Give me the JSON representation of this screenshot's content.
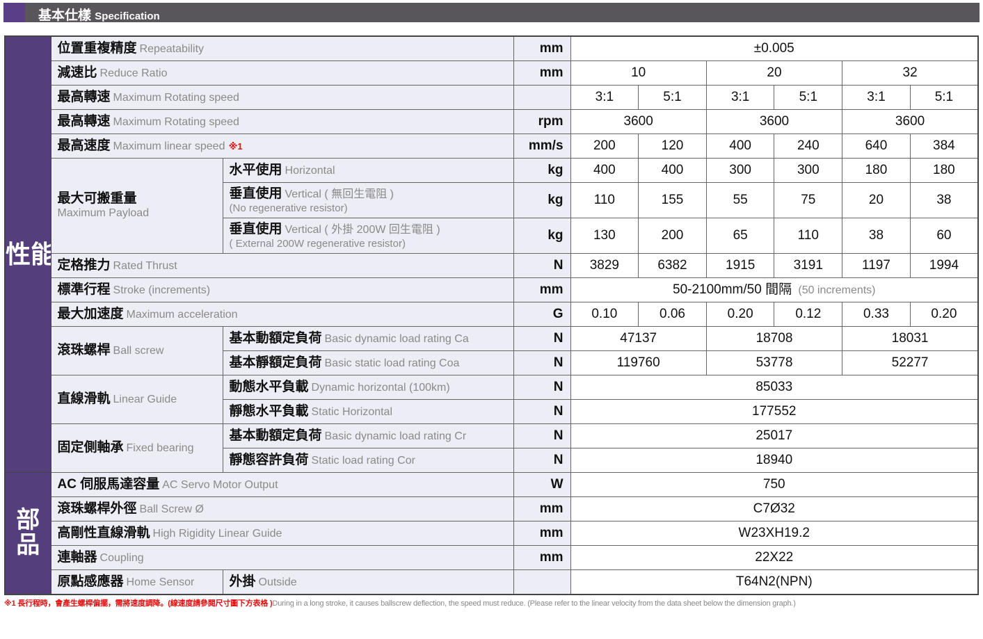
{
  "header": {
    "title_zh": "基本仕樣",
    "title_en": "Specification"
  },
  "side": {
    "performance": "性能",
    "parts": "部品"
  },
  "rows": {
    "repeat": {
      "zh": "位置重複精度",
      "en": "Repeatability",
      "unit": "mm",
      "v": "±0.005"
    },
    "ratio": {
      "zh": "減速比",
      "en": "Reduce Ratio",
      "unit": "mm",
      "v": [
        "10",
        "20",
        "32"
      ]
    },
    "rot1": {
      "zh": "最高轉速",
      "en": "Maximum Rotating speed",
      "v": [
        "3:1",
        "5:1",
        "3:1",
        "5:1",
        "3:1",
        "5:1"
      ]
    },
    "rot2": {
      "zh": "最高轉速",
      "en": "Maximum Rotating speed",
      "unit": "rpm",
      "v": [
        "3600",
        "3600",
        "3600"
      ]
    },
    "lin": {
      "zh": "最高速度",
      "en": "Maximum linear speed",
      "mark": "※1",
      "unit": "mm/s",
      "v": [
        "200",
        "120",
        "400",
        "240",
        "640",
        "384"
      ]
    },
    "payload": {
      "zh": "最大可搬重量",
      "en": "Maximum Payload",
      "h": {
        "zh": "水平使用",
        "en": "Horizontal",
        "unit": "kg",
        "v": [
          "400",
          "400",
          "300",
          "300",
          "180",
          "180"
        ]
      },
      "vn": {
        "zh": "垂直使用",
        "en": "Vertical ( 無回生電阻 )",
        "sub": "(No regenerative resistor)",
        "unit": "kg",
        "v": [
          "110",
          "155",
          "55",
          "75",
          "20",
          "38"
        ]
      },
      "ve": {
        "zh": "垂直使用",
        "en": "Vertical ( 外掛 200W 回生電阻 )",
        "sub": "( External 200W regenerative resistor)",
        "unit": "kg",
        "v": [
          "130",
          "200",
          "65",
          "110",
          "38",
          "60"
        ]
      }
    },
    "thrust": {
      "zh": "定格推力",
      "en": "Rated Thrust",
      "unit": "N",
      "v": [
        "3829",
        "6382",
        "1915",
        "3191",
        "1197",
        "1994"
      ]
    },
    "stroke": {
      "zh": "標準行程",
      "en": "Stroke (increments)",
      "unit": "mm",
      "v": "50-2100mm/50 間隔",
      "v2": "(50 increments)"
    },
    "accel": {
      "zh": "最大加速度",
      "en": "Maximum acceleration",
      "unit": "G",
      "v": [
        "0.10",
        "0.06",
        "0.20",
        "0.12",
        "0.33",
        "0.20"
      ]
    },
    "ballscrew": {
      "zh": "滾珠螺桿",
      "en": "Ball screw",
      "ca": {
        "zh": "基本動額定負荷",
        "en": "Basic dynamic load rating Ca",
        "unit": "N",
        "v": [
          "47137",
          "18708",
          "18031"
        ]
      },
      "coa": {
        "zh": "基本靜額定負荷",
        "en": "Basic static load rating Coa",
        "unit": "N",
        "v": [
          "119760",
          "53778",
          "52277"
        ]
      }
    },
    "guide": {
      "zh": "直線滑軌",
      "en": "Linear Guide",
      "dyn": {
        "zh": "動態水平負載",
        "en": "Dynamic horizontal (100km)",
        "unit": "N",
        "v": "85033"
      },
      "st": {
        "zh": "靜態水平負載",
        "en": "Static Horizontal",
        "unit": "N",
        "v": "177552"
      }
    },
    "bearing": {
      "zh": "固定側軸承",
      "en": "Fixed bearing",
      "cr": {
        "zh": "基本動額定負荷",
        "en": "Basic dynamic load rating Cr",
        "unit": "N",
        "v": "25017"
      },
      "cor": {
        "zh": "靜態容許負荷",
        "en": "Static load rating Cor",
        "unit": "N",
        "v": "18940"
      }
    },
    "motor": {
      "zh": "AC 伺服馬達容量",
      "en": "AC Servo Motor Output",
      "unit": "W",
      "v": "750"
    },
    "bsd": {
      "zh": "滾珠螺桿外徑",
      "en": "Ball Screw Ø",
      "unit": "mm",
      "v": "C7Ø32"
    },
    "hrg": {
      "zh": "高剛性直線滑軌",
      "en": "High Rigidity Linear Guide",
      "unit": "mm",
      "v": "W23XH19.2"
    },
    "coupling": {
      "zh": "連軸器",
      "en": "Coupling",
      "unit": "mm",
      "v": "22X22"
    },
    "home": {
      "zh": "原點感應器",
      "en": "Home Sensor",
      "zh2": "外掛",
      "en2": "Outside",
      "v": "T64N2(NPN)"
    }
  },
  "footnote": {
    "zh": "※1 長行程時，會產生螺桿偏擺，需將速度調降。(線速度請參閱尺寸圖下方表格 )",
    "en": "During in a long stroke, it causes ballscrew deflection, the speed must reduce. (Please refer to the linear velocity from the data sheet below the dimension graph.)"
  },
  "colors": {
    "purple": "#543f7c",
    "label_bg": "#ededf5",
    "header_bg": "#58565a",
    "note_red": "#e01010"
  }
}
